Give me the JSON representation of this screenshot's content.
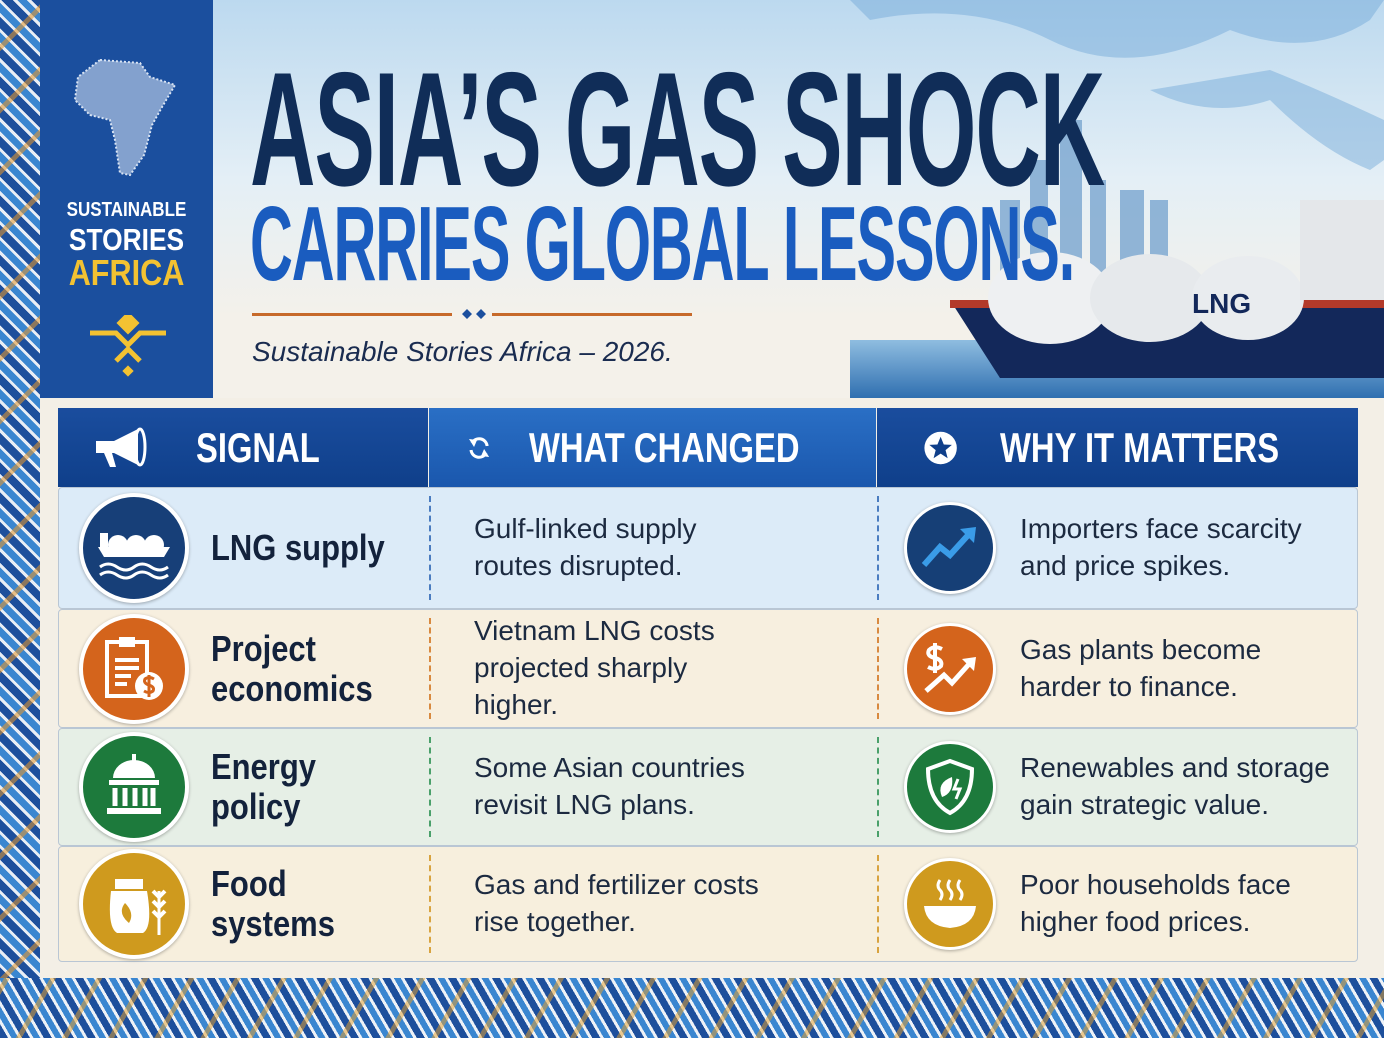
{
  "brand": {
    "line1": "SUSTAINABLE",
    "line2": "STORIES",
    "line3": "AFRICA"
  },
  "header": {
    "title_line1": "ASIA’S GAS SHOCK",
    "title_line2": "CARRIES GLOBAL LESSONS.",
    "subtitle": "Sustainable Stories Africa – 2026.",
    "ship_label": "LNG"
  },
  "table": {
    "columns": [
      {
        "label": "SIGNAL",
        "icon": "megaphone-icon"
      },
      {
        "label": "WHAT CHANGED",
        "icon": "refresh-icon"
      },
      {
        "label": "WHY IT MATTERS",
        "icon": "star-icon"
      }
    ],
    "rows": [
      {
        "signal": "LNG supply",
        "signal_icon": "lng-ship-icon",
        "changed": "Gulf-linked supply routes disrupted.",
        "matters": "Importers face scarcity and price spikes.",
        "matters_icon": "trend-up-icon",
        "color": "#173f78",
        "bg": "#dcebf8"
      },
      {
        "signal": "Project economics",
        "signal_icon": "clipboard-dollar-icon",
        "changed": "Vietnam LNG costs projected sharply higher.",
        "matters": "Gas plants become harder to finance.",
        "matters_icon": "dollar-trend-icon",
        "color": "#d4641c",
        "bg": "#f7efdf"
      },
      {
        "signal": "Energy policy",
        "signal_icon": "government-building-icon",
        "changed": "Some Asian countries revisit LNG plans.",
        "matters": "Renewables and storage gain strategic value.",
        "matters_icon": "shield-leaf-icon",
        "color": "#1d7a3c",
        "bg": "#e6efe6"
      },
      {
        "signal": "Food systems",
        "signal_icon": "grain-sack-icon",
        "changed": "Gas and fertilizer costs rise together.",
        "matters": "Poor households face higher food prices.",
        "matters_icon": "food-bowl-icon",
        "color": "#cf9a1e",
        "bg": "#f7efdd"
      }
    ]
  },
  "colors": {
    "navy": "#102d58",
    "brand_blue": "#1b4f9e",
    "title_blue": "#1a5cbf",
    "gold": "#f3c232"
  }
}
